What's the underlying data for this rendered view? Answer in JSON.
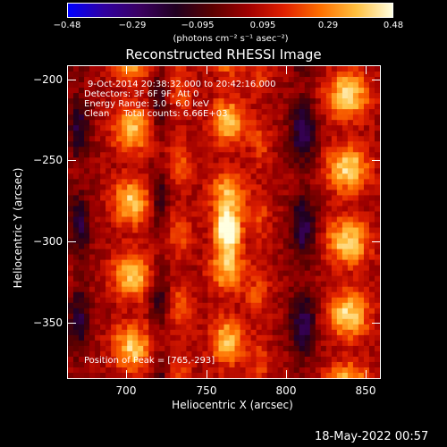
{
  "colorbar": {
    "ticks": [
      "−0.48",
      "−0.29",
      "−0.095",
      "0.095",
      "0.29",
      "0.48"
    ],
    "units": "(photons cm⁻² s⁻¹ asec⁻²)",
    "min": -0.48,
    "max": 0.48
  },
  "title": "Reconstructed RHESSI Image",
  "annotations": {
    "time": "9-Oct-2014 20:38:32.000 to 20:42:16.000",
    "detectors": "Detectors: 3F 6F 9F, Att 0",
    "energy": "Energy Range: 3.0 - 6.0 keV",
    "clean": "Clean     Total counts: 6.66E+03",
    "peak": "Position of Peak = [765,-293]"
  },
  "axes": {
    "xlabel": "Heliocentric X (arcsec)",
    "ylabel": "Heliocentric Y (arcsec)",
    "xticks": [
      "700",
      "750",
      "800",
      "850"
    ],
    "yticks": [
      "−200",
      "−250",
      "−300",
      "−350"
    ],
    "xlim": [
      665,
      860
    ],
    "ylim": [
      -385,
      -190
    ]
  },
  "timestamp": "18-May-2022 00:57",
  "chart_data": {
    "type": "heatmap",
    "title": "Reconstructed RHESSI Image",
    "xlabel": "Heliocentric X (arcsec)",
    "ylabel": "Heliocentric Y (arcsec)",
    "xlim": [
      665,
      860
    ],
    "ylim": [
      -385,
      -190
    ],
    "colorbar_range": [
      -0.48,
      0.48
    ],
    "peak": {
      "x": 765,
      "y": -293,
      "value": 0.48
    }
  },
  "colors": {
    "colormap": [
      "#0000ff",
      "#3000a0",
      "#3a0060",
      "#200020",
      "#5a0000",
      "#a00000",
      "#e02000",
      "#ff7000",
      "#ffc040",
      "#ffffe0"
    ]
  }
}
